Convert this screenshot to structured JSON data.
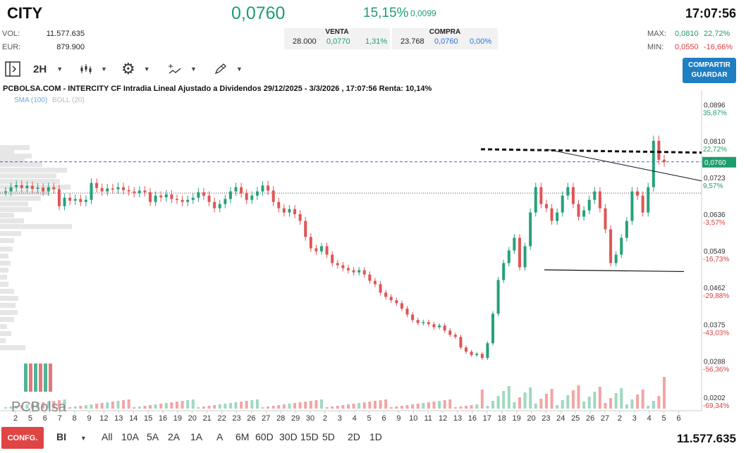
{
  "header": {
    "ticker": "CITY",
    "price": "0,0760",
    "change_pct": "15,15%",
    "change_abs": "0,0099",
    "time": "17:07:56",
    "vol_label": "VOL:",
    "vol_value": "11.577.635",
    "eur_label": "EUR:",
    "eur_value": "879.900",
    "venta_label": "VENTA",
    "venta_qty": "28.000",
    "venta_price": "0,0770",
    "venta_pct": "1,31%",
    "compra_label": "COMPRA",
    "compra_qty": "23.768",
    "compra_price": "0,0760",
    "compra_pct": "0,00%",
    "max_label": "MAX:",
    "max_value": "0,0810",
    "max_pct": "22,72%",
    "min_label": "MIN:",
    "min_value": "0,0550",
    "min_pct": "-16,66%"
  },
  "toolbar": {
    "interval": "2H",
    "share_label_1": "COMPARTIR",
    "share_label_2": "GUARDAR"
  },
  "chart_header": {
    "title": "PCBOLSA.COM - INTERCITY CF Intradia Lineal Ajustado a Dividendos 29/12/2025 - 3/3/2026 , 17:07:56 Renta: 10,14%",
    "sma": "SMA (100)",
    "boll": "BOLL (20)"
  },
  "chart_data": {
    "type": "candlestick",
    "y_ticks": [
      {
        "price": "0,0896",
        "pct": "35,87%"
      },
      {
        "price": "0,0810",
        "pct": "22,72%"
      },
      {
        "price": "0,0723",
        "pct": "9,57%"
      },
      {
        "price": "0,0636",
        "pct": "-3,57%"
      },
      {
        "price": "0,0549",
        "pct": "-16,73%"
      },
      {
        "price": "0,0462",
        "pct": "-29,88%"
      },
      {
        "price": "0,0375",
        "pct": "-43,03%"
      },
      {
        "price": "0,0288",
        "pct": "-56,36%"
      },
      {
        "price": "0,0202",
        "pct": "-69,34%"
      }
    ],
    "current_price_label": "0,0760",
    "x_ticks": [
      "2",
      "5",
      "6",
      "7",
      "8",
      "9",
      "12",
      "13",
      "14",
      "15",
      "16",
      "19",
      "20",
      "21",
      "22",
      "23",
      "26",
      "27",
      "28",
      "29",
      "30",
      "2",
      "3",
      "4",
      "5",
      "6",
      "9",
      "10",
      "11",
      "12",
      "13",
      "16",
      "17",
      "18",
      "19",
      "20",
      "23",
      "24",
      "25",
      "26",
      "27",
      "2",
      "3",
      "4",
      "5",
      "6"
    ],
    "ylim": [
      0.0175,
      0.093
    ],
    "closes": [
      0.069,
      0.07,
      0.0705,
      0.0698,
      0.0703,
      0.0696,
      0.0699,
      0.069,
      0.07,
      0.0695,
      0.0655,
      0.0675,
      0.0668,
      0.0672,
      0.0665,
      0.067,
      0.071,
      0.0698,
      0.069,
      0.0697,
      0.0695,
      0.07,
      0.0693,
      0.069,
      0.0686,
      0.0692,
      0.0688,
      0.0665,
      0.068,
      0.0676,
      0.0683,
      0.0672,
      0.067,
      0.0665,
      0.067,
      0.0675,
      0.0688,
      0.068,
      0.0665,
      0.065,
      0.066,
      0.0672,
      0.069,
      0.07,
      0.0685,
      0.067,
      0.068,
      0.069,
      0.0704,
      0.0692,
      0.0665,
      0.065,
      0.064,
      0.0648,
      0.0636,
      0.062,
      0.0582,
      0.0555,
      0.0548,
      0.056,
      0.054,
      0.052,
      0.0515,
      0.0508,
      0.0503,
      0.0498,
      0.0503,
      0.0493,
      0.0478,
      0.047,
      0.045,
      0.044,
      0.0432,
      0.0425,
      0.0412,
      0.0398,
      0.0385,
      0.0378,
      0.038,
      0.0375,
      0.0368,
      0.0372,
      0.036,
      0.035,
      0.0345,
      0.032,
      0.031,
      0.0302,
      0.0305,
      0.0295,
      0.033,
      0.04,
      0.048,
      0.052,
      0.055,
      0.058,
      0.051,
      0.056,
      0.064,
      0.07,
      0.066,
      0.065,
      0.062,
      0.064,
      0.068,
      0.07,
      0.066,
      0.063,
      0.0645,
      0.067,
      0.069,
      0.065,
      0.06,
      0.052,
      0.054,
      0.058,
      0.062,
      0.069,
      0.068,
      0.064,
      0.07,
      0.081,
      0.0765,
      0.076
    ],
    "volume_note": "bottom volume bars",
    "lines": [
      "resistance ~0.0790 dotted",
      "descending trendline",
      "support ~0.0505"
    ]
  },
  "watermark": "PCBolsa",
  "bottom": {
    "config": "CONFG.",
    "mode": "BI",
    "periods": [
      "All",
      "10A",
      "5A",
      "2A",
      "1A",
      "A",
      "6M",
      "60D",
      "30D",
      "15D",
      "5D",
      "2D",
      "1D"
    ],
    "volume": "11.577.635"
  },
  "colors": {
    "up": "#26a17a",
    "down": "#e05555",
    "accent": "#1e7fc2"
  },
  "icons": [
    "panel-toggle-icon",
    "candles-icon",
    "gear-icon",
    "drawing-icon",
    "pencil-icon"
  ]
}
